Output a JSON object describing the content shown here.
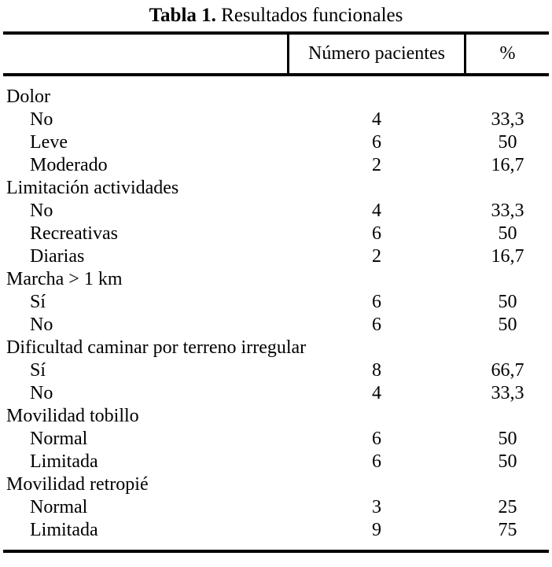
{
  "caption": {
    "label": "Tabla 1.",
    "title": "Resultados funcionales"
  },
  "table": {
    "header": {
      "col1": "",
      "col2": "Número pacientes",
      "col3": "%"
    },
    "rows": [
      {
        "label": "Dolor",
        "indent": false,
        "patients": "",
        "percent": ""
      },
      {
        "label": "No",
        "indent": true,
        "patients": "4",
        "percent": "33,3"
      },
      {
        "label": "Leve",
        "indent": true,
        "patients": "6",
        "percent": "50"
      },
      {
        "label": "Moderado",
        "indent": true,
        "patients": "2",
        "percent": "16,7"
      },
      {
        "label": "Limitación actividades",
        "indent": false,
        "patients": "",
        "percent": ""
      },
      {
        "label": "No",
        "indent": true,
        "patients": "4",
        "percent": "33,3"
      },
      {
        "label": "Recreativas",
        "indent": true,
        "patients": "6",
        "percent": "50"
      },
      {
        "label": "Diarias",
        "indent": true,
        "patients": "2",
        "percent": "16,7"
      },
      {
        "label": "Marcha > 1 km",
        "indent": false,
        "patients": "",
        "percent": ""
      },
      {
        "label": "Sí",
        "indent": true,
        "patients": "6",
        "percent": "50"
      },
      {
        "label": "No",
        "indent": true,
        "patients": "6",
        "percent": "50"
      },
      {
        "label": "Dificultad caminar por terreno irregular",
        "indent": false,
        "patients": "",
        "percent": ""
      },
      {
        "label": "Sí",
        "indent": true,
        "patients": "8",
        "percent": "66,7"
      },
      {
        "label": "No",
        "indent": true,
        "patients": "4",
        "percent": "33,3"
      },
      {
        "label": "Movilidad tobillo",
        "indent": false,
        "patients": "",
        "percent": ""
      },
      {
        "label": "Normal",
        "indent": true,
        "patients": "6",
        "percent": "50"
      },
      {
        "label": "Limitada",
        "indent": true,
        "patients": "6",
        "percent": "50"
      },
      {
        "label": "Movilidad retropié",
        "indent": false,
        "patients": "",
        "percent": ""
      },
      {
        "label": "Normal",
        "indent": true,
        "patients": "3",
        "percent": "25"
      },
      {
        "label": "Limitada",
        "indent": true,
        "patients": "9",
        "percent": "75"
      }
    ]
  },
  "colors": {
    "text": "#000000",
    "background": "#ffffff",
    "rule": "#000000"
  }
}
